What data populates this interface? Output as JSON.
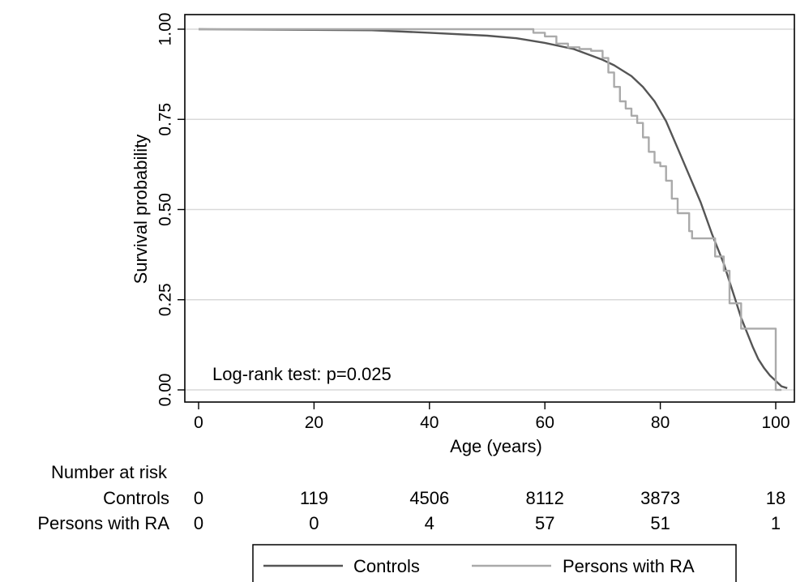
{
  "chart_data": {
    "type": "line",
    "subtype": "kaplan-meier",
    "title": "",
    "xlabel": "Age (years)",
    "ylabel": "Survival probability",
    "xlim": [
      0,
      102
    ],
    "ylim": [
      0,
      1
    ],
    "x_ticks": [
      0,
      20,
      40,
      60,
      80,
      100
    ],
    "y_ticks": [
      0,
      0.25,
      0.5,
      0.75,
      1
    ],
    "y_tick_labels": [
      "0.00",
      "0.25",
      "0.50",
      "0.75",
      "1.00"
    ],
    "grid": "horizontal",
    "annotation": "Log-rank test: p=0.025",
    "series": [
      {
        "name": "Controls",
        "color": "#555555",
        "points": [
          [
            0,
            1
          ],
          [
            30,
            0.997
          ],
          [
            40,
            0.99
          ],
          [
            50,
            0.982
          ],
          [
            55,
            0.975
          ],
          [
            60,
            0.962
          ],
          [
            65,
            0.945
          ],
          [
            70,
            0.915
          ],
          [
            72,
            0.9
          ],
          [
            75,
            0.87
          ],
          [
            77,
            0.84
          ],
          [
            79,
            0.8
          ],
          [
            81,
            0.745
          ],
          [
            83,
            0.67
          ],
          [
            85,
            0.595
          ],
          [
            87,
            0.52
          ],
          [
            89,
            0.43
          ],
          [
            90,
            0.39
          ],
          [
            91,
            0.35
          ],
          [
            92,
            0.3
          ],
          [
            93,
            0.25
          ],
          [
            94,
            0.2
          ],
          [
            95,
            0.16
          ],
          [
            96,
            0.12
          ],
          [
            97,
            0.085
          ],
          [
            98,
            0.06
          ],
          [
            99,
            0.04
          ],
          [
            100,
            0.025
          ],
          [
            101,
            0.01
          ],
          [
            102,
            0.005
          ]
        ]
      },
      {
        "name": "Persons with RA",
        "color": "#aaaaaa",
        "points": [
          [
            0,
            1
          ],
          [
            58,
            1
          ],
          [
            58,
            0.99
          ],
          [
            60,
            0.98
          ],
          [
            62,
            0.96
          ],
          [
            64,
            0.95
          ],
          [
            66,
            0.945
          ],
          [
            68,
            0.94
          ],
          [
            70,
            0.92
          ],
          [
            71,
            0.88
          ],
          [
            72,
            0.84
          ],
          [
            73,
            0.8
          ],
          [
            74,
            0.78
          ],
          [
            75,
            0.76
          ],
          [
            76,
            0.74
          ],
          [
            77,
            0.7
          ],
          [
            78,
            0.66
          ],
          [
            79,
            0.63
          ],
          [
            80,
            0.62
          ],
          [
            81,
            0.58
          ],
          [
            82,
            0.53
          ],
          [
            83,
            0.49
          ],
          [
            85,
            0.44
          ],
          [
            85.5,
            0.42
          ],
          [
            89,
            0.42
          ],
          [
            89.5,
            0.37
          ],
          [
            91,
            0.33
          ],
          [
            92,
            0.24
          ],
          [
            94,
            0.17
          ],
          [
            100,
            0.17
          ],
          [
            100,
            0
          ],
          [
            101,
            0
          ]
        ]
      }
    ],
    "risk_table": {
      "heading": "Number at risk",
      "rows": [
        {
          "label": "Controls",
          "values": [
            "0",
            "119",
            "4506",
            "8112",
            "3873",
            "18"
          ]
        },
        {
          "label": "Persons with RA",
          "values": [
            "0",
            "0",
            "4",
            "57",
            "51",
            "1"
          ]
        }
      ]
    },
    "legend": {
      "placement": "bottom",
      "entries": [
        "Controls",
        "Persons with RA"
      ]
    }
  }
}
